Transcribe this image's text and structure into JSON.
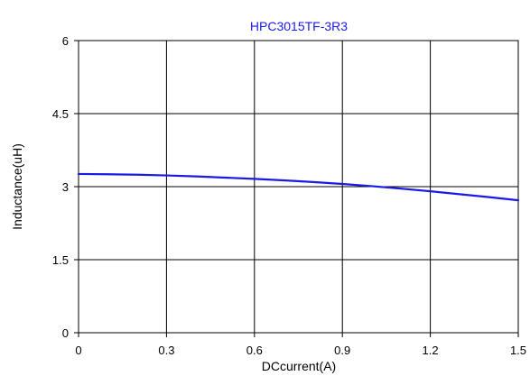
{
  "chart_data": {
    "type": "line",
    "title": "HPC3015TF-3R3",
    "xlabel": "DCcurrent(A)",
    "ylabel": "Inductance(uH)",
    "xlim": [
      0,
      1.5
    ],
    "ylim": [
      0,
      6
    ],
    "x_ticks": [
      "0",
      "0.3",
      "0.6",
      "0.9",
      "1.2",
      "1.5"
    ],
    "y_ticks": [
      "0",
      "1.5",
      "3",
      "4.5",
      "6"
    ],
    "grid": true,
    "legend": "none",
    "series": [
      {
        "color": "#1a1ae6",
        "x": [
          0,
          0.1,
          0.2,
          0.3,
          0.4,
          0.5,
          0.6,
          0.7,
          0.8,
          0.9,
          1.0,
          1.1,
          1.2,
          1.3,
          1.4,
          1.5
        ],
        "y": [
          3.26,
          3.255,
          3.245,
          3.23,
          3.21,
          3.185,
          3.16,
          3.13,
          3.095,
          3.055,
          3.01,
          2.96,
          2.905,
          2.845,
          2.785,
          2.72
        ]
      }
    ],
    "title_color": "#1a1ae6"
  }
}
